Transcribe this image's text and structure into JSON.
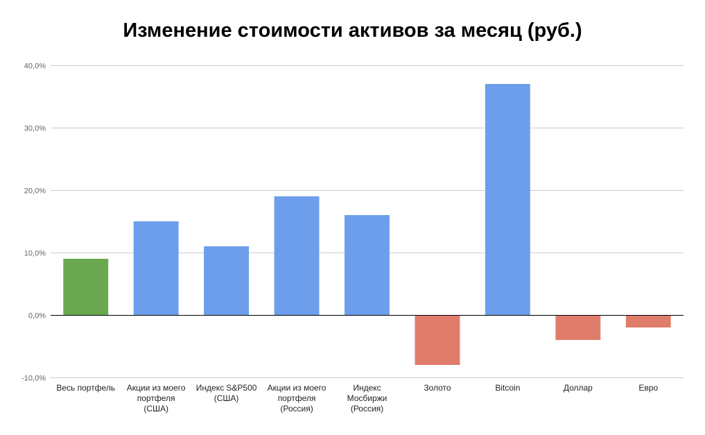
{
  "chart_data": {
    "type": "bar",
    "title": "Изменение стоимости активов за месяц (руб.)",
    "xlabel": "",
    "ylabel": "",
    "ylim": [
      -10,
      40
    ],
    "yticks": [
      40,
      30,
      20,
      10,
      0,
      -10
    ],
    "ytick_labels": [
      "40,0%",
      "30,0%",
      "20,0%",
      "10,0%",
      "0,0%",
      "-10,0%"
    ],
    "grid": true,
    "legend": "none",
    "categories": [
      [
        "Весь портфель"
      ],
      [
        "Акции из моего",
        "портфеля",
        "(США)"
      ],
      [
        "Индекс S&P500",
        "(США)"
      ],
      [
        "Акции из моего",
        "портфеля",
        "(Россия)"
      ],
      [
        "Индекс",
        "Мосбиржи",
        "(Россия)"
      ],
      [
        "Золото"
      ],
      [
        "Bitcoin"
      ],
      [
        "Доллар"
      ],
      [
        "Евро"
      ]
    ],
    "values": [
      9,
      15,
      11,
      19,
      16,
      -8,
      37,
      -4,
      -2
    ],
    "bar_colors": [
      "#6aa84f",
      "#6d9eeb",
      "#6d9eeb",
      "#6d9eeb",
      "#6d9eeb",
      "#e07c6a",
      "#6d9eeb",
      "#e07c6a",
      "#e07c6a"
    ]
  },
  "colors": {
    "gridline": "#cccccc",
    "zero_line": "#000000"
  }
}
